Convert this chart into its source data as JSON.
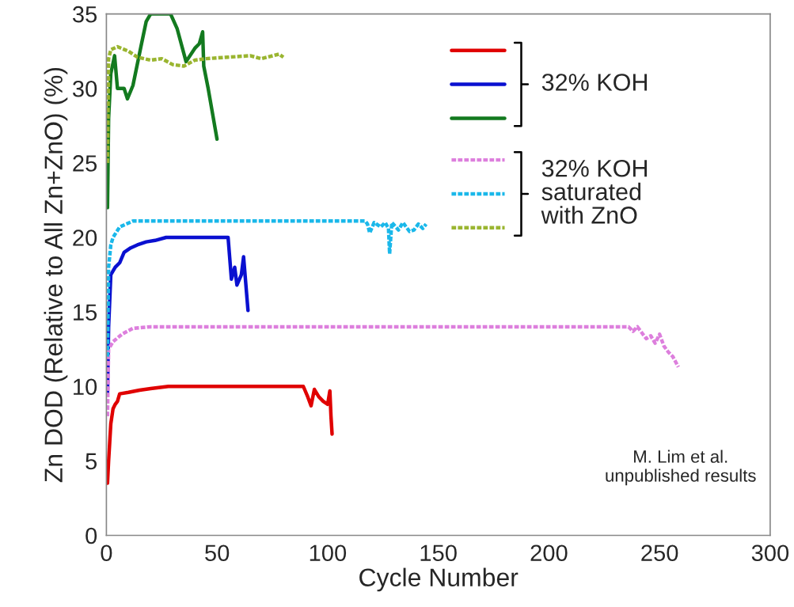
{
  "chart_data": {
    "type": "line",
    "xlabel": "Cycle Number",
    "ylabel": "Zn DOD (Relative to All Zn+ZnO) (%)",
    "xlim": [
      0,
      300
    ],
    "xticks": [
      0,
      50,
      100,
      150,
      200,
      250,
      300
    ],
    "ylim": [
      0,
      35
    ],
    "yticks": [
      0,
      5,
      10,
      15,
      20,
      25,
      30,
      35
    ],
    "grid": false,
    "marker": "none",
    "annotations": [
      "32% KOH",
      "32% KOH\nsaturated\nwith ZnO",
      "M. Lim et al.\nunpublished results"
    ],
    "series": [
      {
        "color": "#e00000",
        "line_style": "solid",
        "x": [
          0.5,
          1,
          2,
          3,
          4,
          5,
          6,
          10,
          15,
          20,
          28,
          89,
          91,
          92.5,
          94,
          96,
          98,
          100,
          101,
          101.5,
          102
        ],
        "values": [
          3.5,
          5,
          7.5,
          8.5,
          8.8,
          9.0,
          9.5,
          9.6,
          9.75,
          9.85,
          10,
          10,
          9.3,
          8.7,
          9.8,
          9.3,
          9.0,
          8.8,
          9.7,
          8.0,
          6.8
        ]
      },
      {
        "color": "#0a10d0",
        "line_style": "solid",
        "x": [
          0.5,
          1,
          2,
          4,
          6,
          8,
          11,
          14,
          18,
          22,
          27,
          55,
          56.5,
          58,
          59,
          61,
          62,
          64
        ],
        "values": [
          9.5,
          14,
          17.5,
          18,
          18.3,
          19,
          19.3,
          19.5,
          19.7,
          19.8,
          20,
          20,
          17.2,
          18.0,
          16.8,
          17.5,
          18.7,
          15.1
        ]
      },
      {
        "color": "#137a1f",
        "line_style": "solid",
        "x": [
          0.5,
          1,
          2,
          3.7,
          5,
          8,
          9.5,
          12,
          15.6,
          18,
          20,
          29,
          32,
          36,
          40,
          42,
          43.5,
          44,
          46,
          50
        ],
        "values": [
          22,
          28,
          31,
          32.2,
          30,
          30,
          29.3,
          30.2,
          32.8,
          34.5,
          35,
          35,
          34,
          31.8,
          32.7,
          33.0,
          33.8,
          31.5,
          30,
          26.6
        ]
      },
      {
        "color": "#dd7fdd",
        "line_style": "dashed",
        "x": [
          0.5,
          1,
          3,
          7,
          12,
          20,
          236,
          238,
          240,
          242,
          244,
          246,
          248,
          250,
          252,
          254,
          256,
          258.5
        ],
        "values": [
          8,
          12.5,
          13,
          13.5,
          13.9,
          14,
          14,
          13.7,
          14.0,
          13.6,
          13.2,
          13.4,
          12.9,
          13.5,
          12.7,
          12.3,
          12.0,
          11.3
        ]
      },
      {
        "color": "#1ab8ea",
        "line_style": "dashed",
        "x": [
          0.5,
          1,
          2,
          3,
          6,
          12,
          117,
          118,
          119,
          121,
          124,
          126,
          127.5,
          128,
          129,
          132,
          134,
          137,
          139,
          141,
          143,
          144.5
        ],
        "values": [
          12,
          18,
          19.5,
          20,
          20.7,
          21.1,
          21.1,
          20.9,
          20.3,
          21.0,
          20.7,
          21.0,
          20.6,
          18.9,
          21.0,
          20.5,
          21.0,
          20.4,
          20.5,
          20.9,
          20.6,
          20.9
        ]
      },
      {
        "color": "#9ab530",
        "line_style": "dashed",
        "x": [
          0.5,
          1,
          2,
          5,
          10,
          14,
          20,
          25,
          30,
          35,
          40,
          45,
          55,
          65,
          70,
          78,
          80
        ],
        "values": [
          25,
          32,
          32.6,
          32.8,
          32.5,
          32.1,
          31.9,
          32,
          31.6,
          31.5,
          31.9,
          32,
          32.1,
          32.2,
          32.0,
          32.3,
          32.1
        ]
      }
    ]
  }
}
